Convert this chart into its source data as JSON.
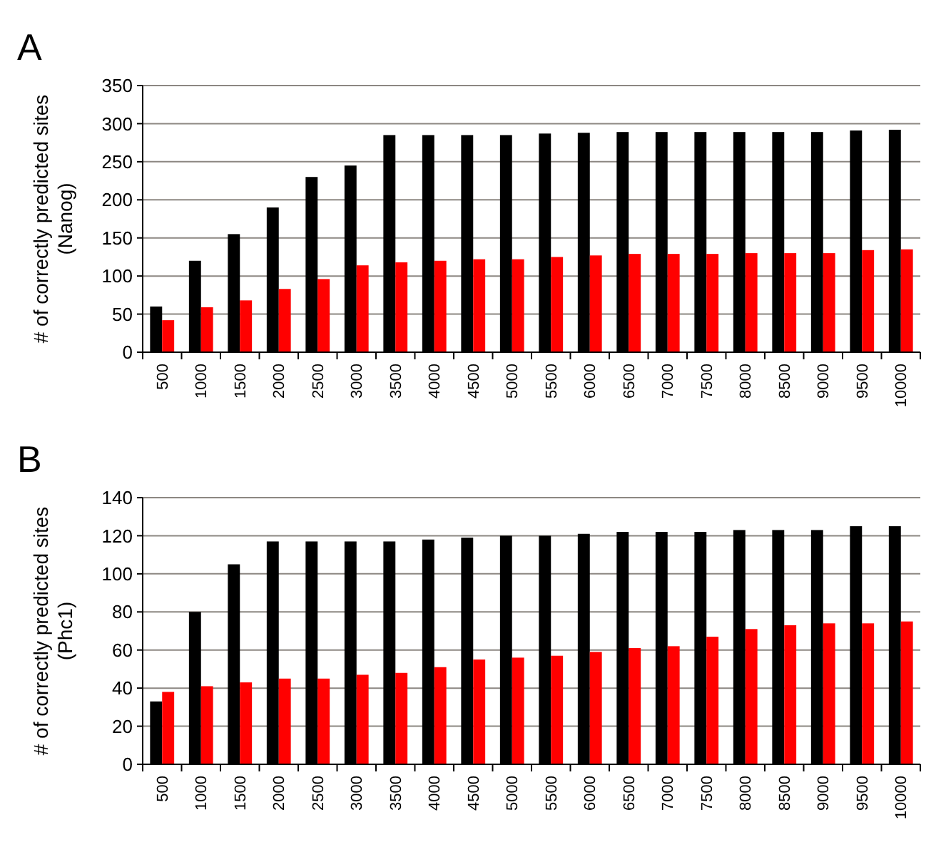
{
  "chart_data": [
    {
      "type": "bar",
      "title": "A",
      "ylabel": "# of correctly predicted sites\n(Nanog)",
      "categories": [
        "500",
        "1000",
        "1500",
        "2000",
        "2500",
        "3000",
        "3500",
        "4000",
        "4500",
        "5000",
        "5500",
        "6000",
        "6500",
        "7000",
        "7500",
        "8000",
        "8500",
        "9000",
        "9500",
        "10000"
      ],
      "series": [
        {
          "color": "#000000",
          "values": [
            60,
            120,
            155,
            190,
            230,
            245,
            285,
            285,
            285,
            285,
            287,
            288,
            289,
            289,
            289,
            289,
            289,
            289,
            291,
            292
          ]
        },
        {
          "color": "#ff0000",
          "values": [
            42,
            59,
            68,
            83,
            96,
            114,
            118,
            120,
            122,
            122,
            125,
            127,
            129,
            129,
            129,
            130,
            130,
            130,
            134,
            135
          ]
        }
      ],
      "ylim": [
        0,
        350
      ],
      "yticks": [
        0,
        50,
        100,
        150,
        200,
        250,
        300,
        350
      ],
      "grid": "y"
    },
    {
      "type": "bar",
      "title": "B",
      "ylabel": "# of correctly predicted sites\n(Phc1)",
      "categories": [
        "500",
        "1000",
        "1500",
        "2000",
        "2500",
        "3000",
        "3500",
        "4000",
        "4500",
        "5000",
        "5500",
        "6000",
        "6500",
        "7000",
        "7500",
        "8000",
        "8500",
        "9000",
        "9500",
        "10000"
      ],
      "series": [
        {
          "color": "#000000",
          "values": [
            33,
            80,
            105,
            117,
            117,
            117,
            117,
            118,
            119,
            120,
            120,
            121,
            122,
            122,
            122,
            123,
            123,
            123,
            125,
            125
          ]
        },
        {
          "color": "#ff0000",
          "values": [
            38,
            41,
            43,
            45,
            45,
            47,
            48,
            51,
            55,
            56,
            57,
            59,
            61,
            62,
            67,
            71,
            73,
            74,
            74,
            75
          ]
        }
      ],
      "ylim": [
        0,
        140
      ],
      "yticks": [
        0,
        20,
        40,
        60,
        80,
        100,
        120,
        140
      ],
      "grid": "y"
    }
  ]
}
